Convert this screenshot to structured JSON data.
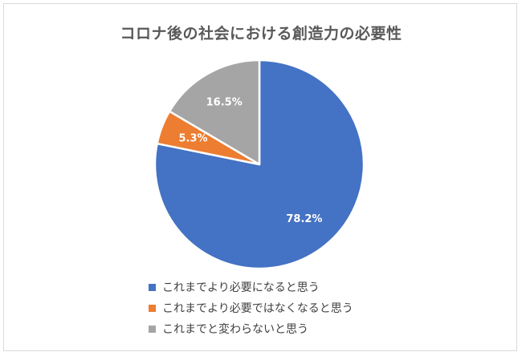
{
  "chart_data": {
    "type": "pie",
    "title": "コロナ後の社会における創造力の必要性",
    "categories": [
      "これまでより必要になると思う",
      "これまでより必要ではなくなると思う",
      "これまでと変わらないと思う"
    ],
    "values": [
      78.2,
      5.3,
      16.5
    ],
    "data_labels": [
      "78.2%",
      "5.3%",
      "16.5%"
    ],
    "colors": [
      "#4472c4",
      "#ed7d31",
      "#a5a5a5"
    ],
    "start_angle_deg": 0,
    "direction": "clockwise",
    "legend_position": "bottom"
  }
}
